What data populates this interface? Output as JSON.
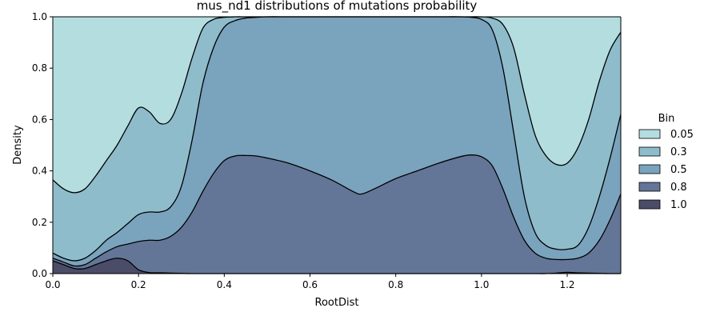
{
  "chart_data": {
    "type": "area",
    "title": "mus_nd1 distributions of mutations probability",
    "xlabel": "RootDist",
    "ylabel": "Density",
    "xlim": [
      0,
      1.325
    ],
    "ylim": [
      0,
      1
    ],
    "xticks": [
      "0.0",
      "0.2",
      "0.4",
      "0.6",
      "0.8",
      "1.0",
      "1.2"
    ],
    "xtick_values": [
      0,
      0.2,
      0.4,
      0.6,
      0.8,
      1.0,
      1.2
    ],
    "yticks": [
      "0.0",
      "0.2",
      "0.4",
      "0.6",
      "0.8",
      "1.0"
    ],
    "ytick_values": [
      0,
      0.2,
      0.4,
      0.6,
      0.8,
      1.0
    ],
    "stacked_fill": true,
    "legend": {
      "title": "Bin",
      "placement": "right",
      "entries": [
        "0.05",
        "0.3",
        "0.5",
        "0.8",
        "1.0"
      ]
    },
    "x": [
      0,
      0.025,
      0.05,
      0.075,
      0.1,
      0.125,
      0.15,
      0.175,
      0.2,
      0.225,
      0.25,
      0.275,
      0.3,
      0.325,
      0.35,
      0.375,
      0.4,
      0.425,
      0.45,
      0.475,
      0.5,
      0.55,
      0.6,
      0.65,
      0.7,
      0.72,
      0.75,
      0.8,
      0.85,
      0.9,
      0.95,
      0.975,
      1.0,
      1.025,
      1.05,
      1.075,
      1.1,
      1.125,
      1.15,
      1.175,
      1.2,
      1.225,
      1.25,
      1.275,
      1.3,
      1.325
    ],
    "boundaries": [
      {
        "name": "1.0",
        "values": [
          0.05,
          0.035,
          0.02,
          0.02,
          0.035,
          0.05,
          0.06,
          0.05,
          0.015,
          0.004,
          0.003,
          0.002,
          0.001,
          0,
          0,
          0,
          0,
          0,
          0,
          0,
          0,
          0,
          0,
          0,
          0,
          0,
          0,
          0,
          0,
          0,
          0,
          0,
          0,
          0,
          0,
          0,
          0,
          0,
          0,
          0.002,
          0.005,
          0.003,
          0.002,
          0.001,
          0,
          0
        ]
      },
      {
        "name": "0.8",
        "values": [
          0.06,
          0.045,
          0.03,
          0.035,
          0.06,
          0.085,
          0.105,
          0.115,
          0.125,
          0.13,
          0.13,
          0.145,
          0.18,
          0.24,
          0.32,
          0.39,
          0.44,
          0.458,
          0.46,
          0.458,
          0.45,
          0.43,
          0.4,
          0.365,
          0.32,
          0.31,
          0.33,
          0.37,
          0.4,
          0.43,
          0.455,
          0.462,
          0.455,
          0.42,
          0.33,
          0.22,
          0.13,
          0.08,
          0.06,
          0.055,
          0.055,
          0.06,
          0.08,
          0.13,
          0.21,
          0.31
        ]
      },
      {
        "name": "0.5",
        "values": [
          0.08,
          0.06,
          0.05,
          0.06,
          0.09,
          0.13,
          0.16,
          0.195,
          0.23,
          0.24,
          0.24,
          0.26,
          0.34,
          0.52,
          0.74,
          0.88,
          0.96,
          0.985,
          0.995,
          0.998,
          1.0,
          1.0,
          1.0,
          1.0,
          1.0,
          1.0,
          1.0,
          1.0,
          1.0,
          1.0,
          1.0,
          0.998,
          0.99,
          0.95,
          0.8,
          0.55,
          0.3,
          0.16,
          0.11,
          0.095,
          0.095,
          0.11,
          0.18,
          0.3,
          0.45,
          0.62
        ]
      },
      {
        "name": "0.3",
        "values": [
          0.365,
          0.33,
          0.315,
          0.33,
          0.38,
          0.44,
          0.5,
          0.575,
          0.645,
          0.63,
          0.585,
          0.6,
          0.7,
          0.84,
          0.955,
          0.99,
          0.998,
          1.0,
          1.0,
          1.0,
          1.0,
          1.0,
          1.0,
          1.0,
          1.0,
          1.0,
          1.0,
          1.0,
          1.0,
          1.0,
          1.0,
          1.0,
          1.0,
          0.995,
          0.97,
          0.88,
          0.7,
          0.54,
          0.46,
          0.425,
          0.43,
          0.49,
          0.6,
          0.75,
          0.87,
          0.94
        ]
      }
    ],
    "colors": {
      "0.05": "#b4dde0",
      "0.3": "#8ebccb",
      "0.5": "#7aa3bd",
      "0.8": "#637697",
      "1.0": "#4a4c68",
      "line": "#000000"
    }
  }
}
